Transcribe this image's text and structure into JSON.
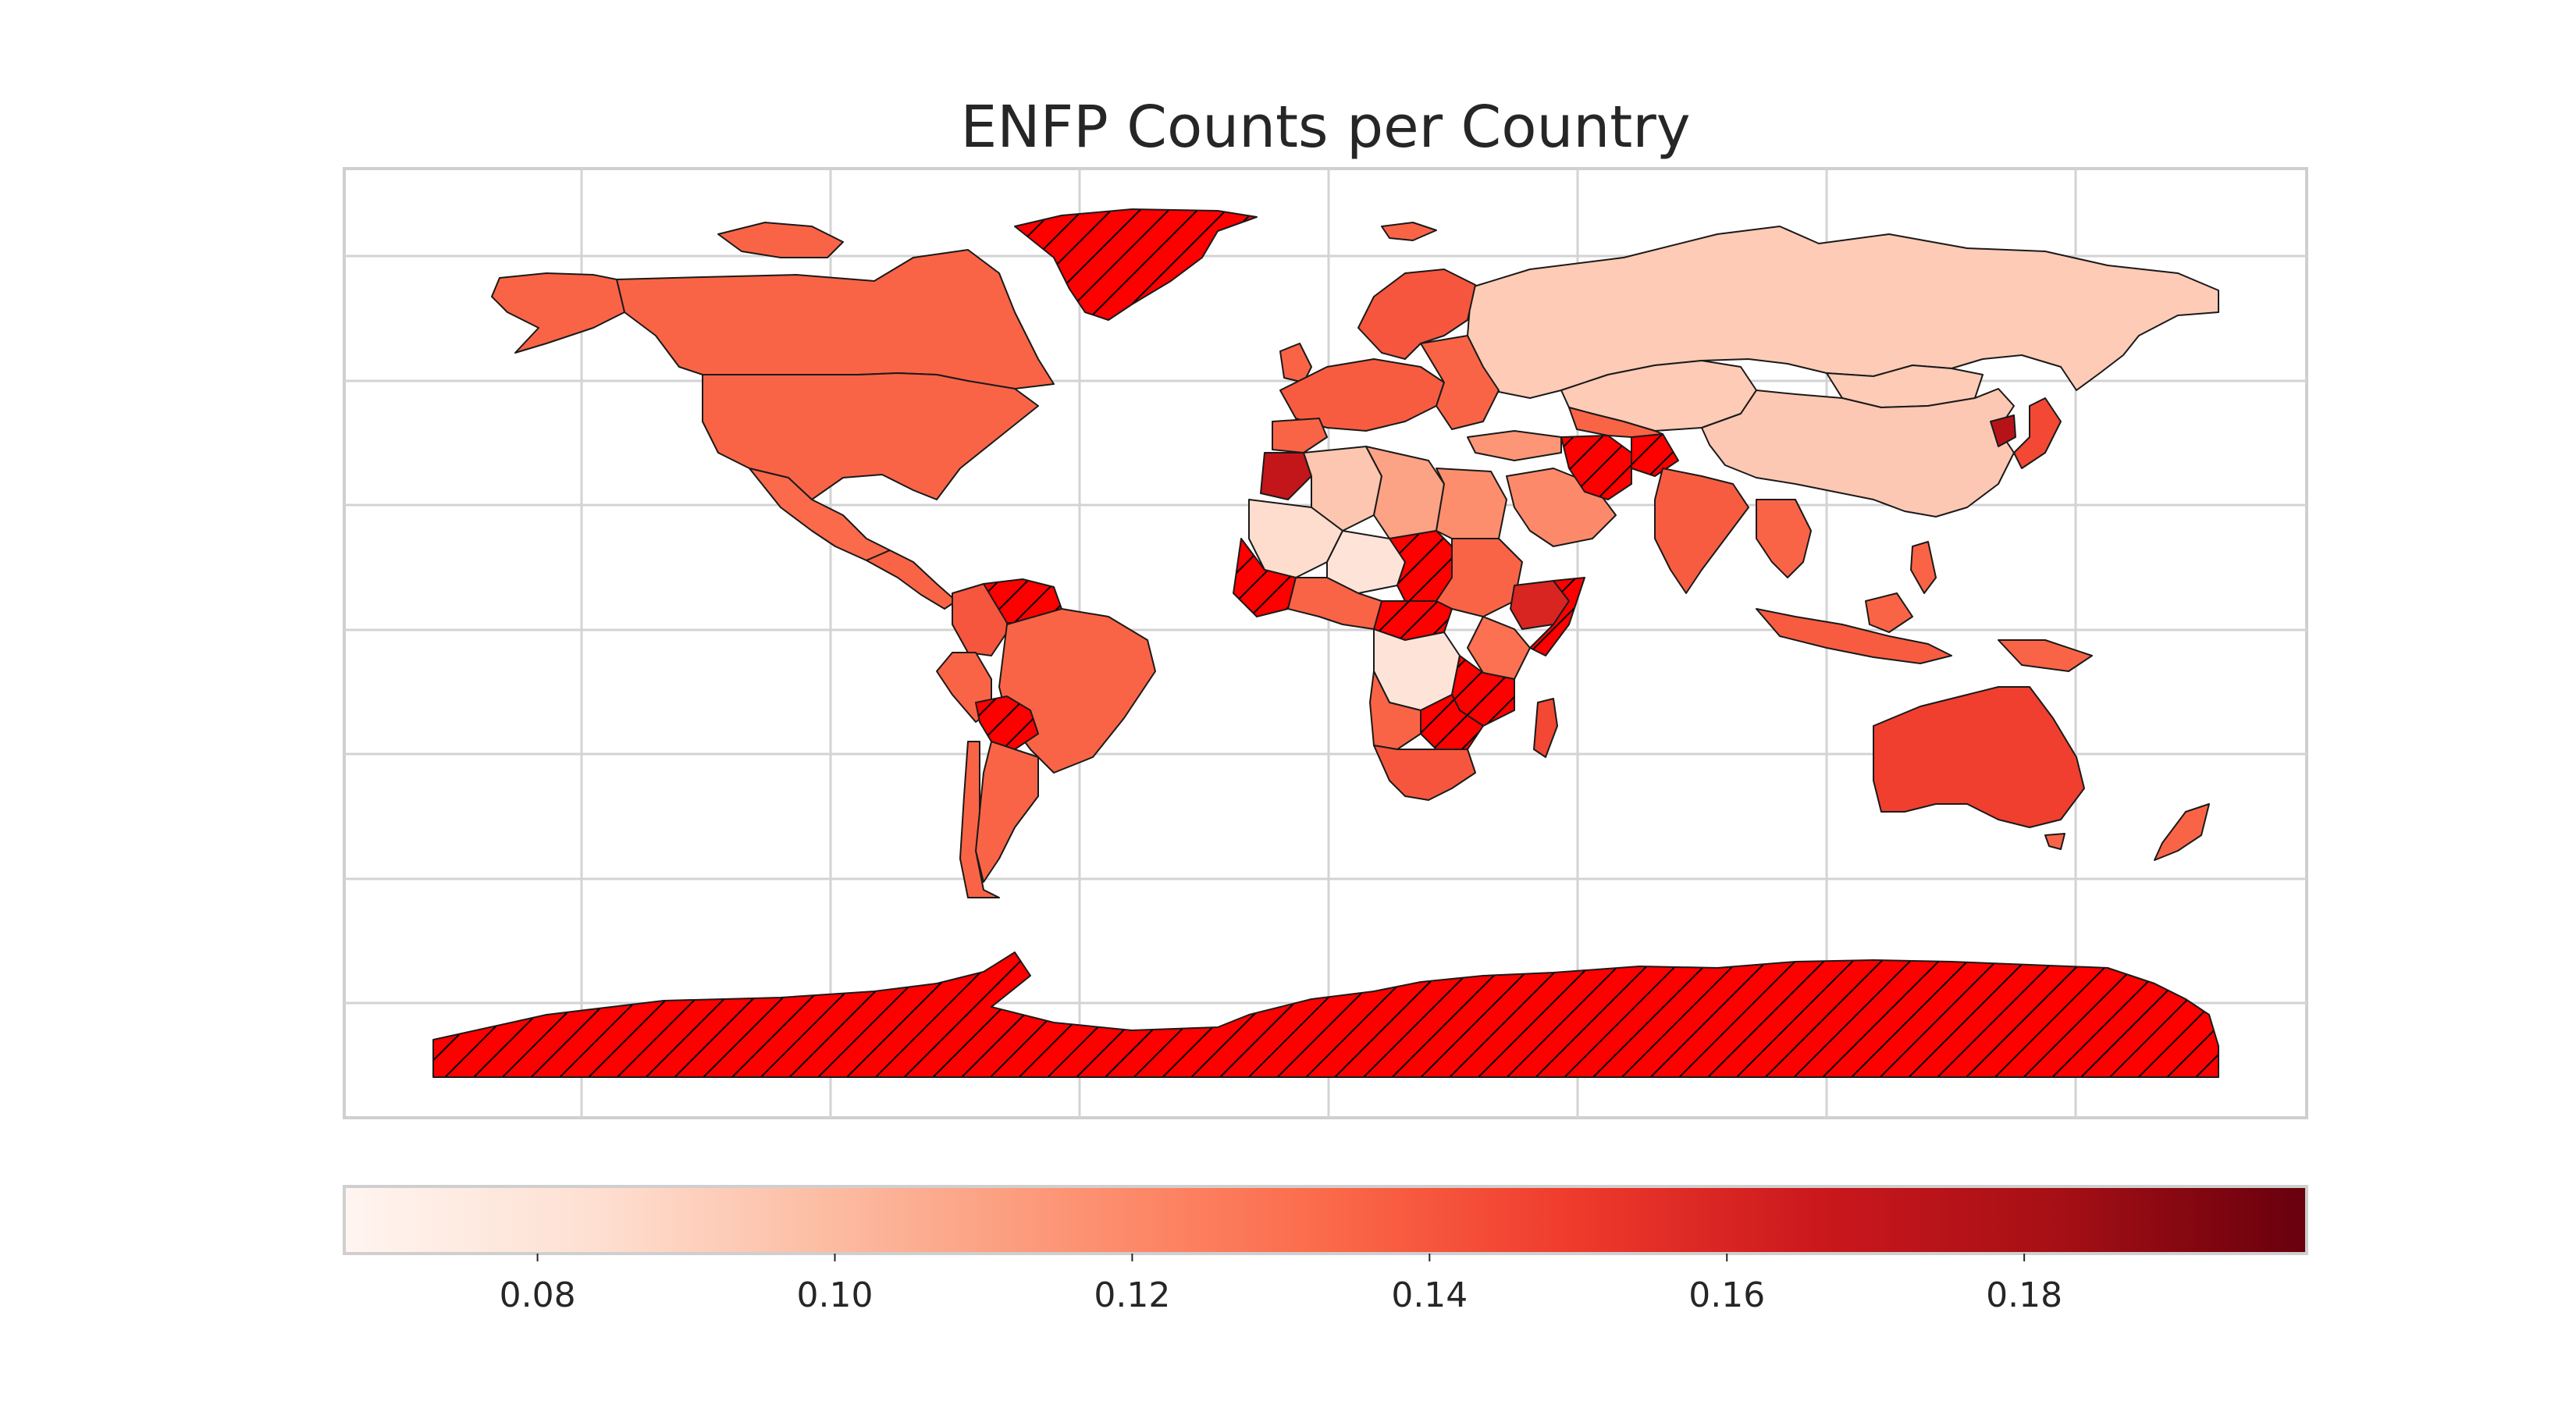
{
  "chart_data": {
    "type": "choropleth",
    "title": "ENFP Counts per Country",
    "colormap": "Reds",
    "colorbar": {
      "orientation": "horizontal",
      "placement": "bottom",
      "range": [
        0.067,
        0.199
      ],
      "ticks": [
        "0.08",
        "0.10",
        "0.12",
        "0.14",
        "0.16",
        "0.18"
      ],
      "tick_values": [
        0.08,
        0.1,
        0.12,
        0.14,
        0.16,
        0.18
      ]
    },
    "no_data_style": "hatched",
    "no_data_color": "#ff0000",
    "grid": true,
    "regions": [
      {
        "region": "Russia",
        "value": 0.093
      },
      {
        "region": "China",
        "value": 0.094
      },
      {
        "region": "Kazakhstan",
        "value": 0.093
      },
      {
        "region": "Mongolia",
        "value": 0.093
      },
      {
        "region": "Canada",
        "value": 0.135
      },
      {
        "region": "United States",
        "value": 0.135
      },
      {
        "region": "Mexico",
        "value": 0.133
      },
      {
        "region": "Brazil",
        "value": 0.135
      },
      {
        "region": "Argentina",
        "value": 0.135
      },
      {
        "region": "Chile",
        "value": 0.135
      },
      {
        "region": "Peru",
        "value": 0.135
      },
      {
        "region": "Colombia",
        "value": 0.14
      },
      {
        "region": "Australia",
        "value": 0.148
      },
      {
        "region": "India",
        "value": 0.138
      },
      {
        "region": "Saudi Arabia",
        "value": 0.12
      },
      {
        "region": "Egypt",
        "value": 0.118
      },
      {
        "region": "Algeria",
        "value": 0.095
      },
      {
        "region": "Libya",
        "value": 0.11
      },
      {
        "region": "Niger",
        "value": 0.08
      },
      {
        "region": "Mali",
        "value": 0.085
      },
      {
        "region": "DR Congo",
        "value": 0.08
      },
      {
        "region": "South Africa",
        "value": 0.14
      },
      {
        "region": "Ethiopia",
        "value": 0.16
      },
      {
        "region": "Kenya",
        "value": 0.13
      },
      {
        "region": "Madagascar",
        "value": 0.145
      },
      {
        "region": "Indonesia",
        "value": 0.138
      },
      {
        "region": "Japan",
        "value": 0.145
      },
      {
        "region": "North Korea",
        "value": 0.175
      },
      {
        "region": "Morocco",
        "value": 0.17
      },
      {
        "region": "Scandinavia",
        "value": 0.14
      },
      {
        "region": "Western Europe",
        "value": 0.138
      },
      {
        "region": "Turkey",
        "value": 0.115
      },
      {
        "region": "Greenland",
        "value": null
      },
      {
        "region": "Antarctica",
        "value": null
      },
      {
        "region": "Iran",
        "value": null
      },
      {
        "region": "Afghanistan",
        "value": null
      },
      {
        "region": "Venezuela",
        "value": null
      },
      {
        "region": "Bolivia",
        "value": null
      },
      {
        "region": "Chad",
        "value": null
      },
      {
        "region": "Central African Republic",
        "value": null
      },
      {
        "region": "Tanzania",
        "value": null
      },
      {
        "region": "Zambia",
        "value": null
      },
      {
        "region": "Guinea",
        "value": null
      },
      {
        "region": "Somalia",
        "value": null
      }
    ]
  }
}
